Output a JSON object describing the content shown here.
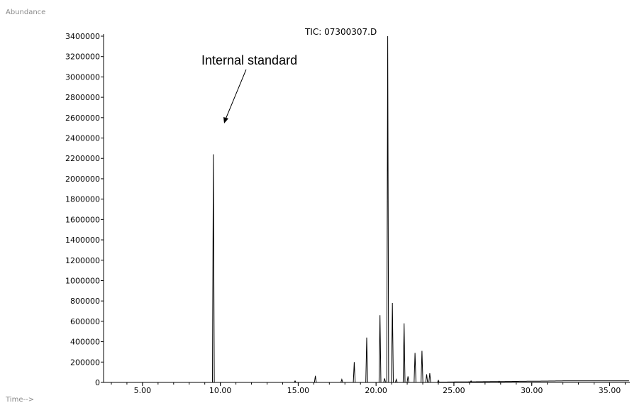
{
  "chart_data": {
    "type": "line",
    "title": "TIC: 07300307.D",
    "ylabel": "Abundance",
    "xlabel": "Time-->",
    "xlim": [
      2.5,
      36.3
    ],
    "ylim": [
      0,
      3400000
    ],
    "x_ticks": [
      5,
      10,
      15,
      20,
      25,
      30,
      35
    ],
    "x_tick_labels": [
      "5.00",
      "10.00",
      "15.00",
      "20.00",
      "25.00",
      "30.00",
      "35.00"
    ],
    "y_ticks": [
      0,
      200000,
      400000,
      600000,
      800000,
      1000000,
      1200000,
      1400000,
      1600000,
      1800000,
      2000000,
      2200000,
      2400000,
      2600000,
      2800000,
      3000000,
      3200000,
      3400000
    ],
    "y_tick_labels": [
      "0",
      "200000",
      "400000",
      "600000",
      "800000",
      "1000000",
      "1200000",
      "1400000",
      "1600000",
      "1800000",
      "2000000",
      "2200000",
      "2400000",
      "2600000",
      "2800000",
      "3000000",
      "3200000",
      "3400000"
    ],
    "grid": false,
    "peaks": [
      {
        "x": 9.55,
        "y": 2240000
      },
      {
        "x": 14.8,
        "y": 15000
      },
      {
        "x": 16.1,
        "y": 65000
      },
      {
        "x": 17.8,
        "y": 30000
      },
      {
        "x": 18.6,
        "y": 200000
      },
      {
        "x": 19.4,
        "y": 440000
      },
      {
        "x": 20.25,
        "y": 660000
      },
      {
        "x": 20.75,
        "y": 3400000
      },
      {
        "x": 20.55,
        "y": 40000
      },
      {
        "x": 21.05,
        "y": 780000
      },
      {
        "x": 21.3,
        "y": 30000
      },
      {
        "x": 21.8,
        "y": 580000
      },
      {
        "x": 22.05,
        "y": 60000
      },
      {
        "x": 22.5,
        "y": 290000
      },
      {
        "x": 22.95,
        "y": 310000
      },
      {
        "x": 23.25,
        "y": 80000
      },
      {
        "x": 23.45,
        "y": 90000
      },
      {
        "x": 24.0,
        "y": 20000
      },
      {
        "x": 26.1,
        "y": 15000
      },
      {
        "x": 27.9,
        "y": 12000
      }
    ],
    "annotations": [
      {
        "text": "Internal standard",
        "points_to_x": 9.55
      }
    ]
  }
}
